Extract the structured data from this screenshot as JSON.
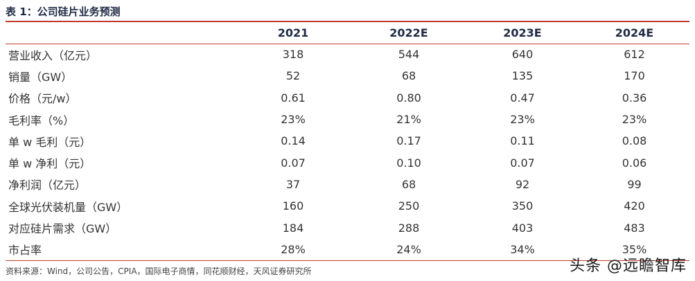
{
  "title": "表 1：公司硅片业务预测",
  "header": {
    "label": "",
    "years": [
      "2021",
      "2022E",
      "2023E",
      "2024E"
    ]
  },
  "rows": [
    {
      "label": "营业收入（亿元）",
      "values": [
        "318",
        "544",
        "640",
        "612"
      ]
    },
    {
      "label": "销量（GW）",
      "values": [
        "52",
        "68",
        "135",
        "170"
      ]
    },
    {
      "label": "价格（元/w）",
      "values": [
        "0.61",
        "0.80",
        "0.47",
        "0.36"
      ]
    },
    {
      "label": "毛利率（%）",
      "values": [
        "23%",
        "21%",
        "23%",
        "23%"
      ]
    },
    {
      "label": "单 w 毛利（元）",
      "values": [
        "0.14",
        "0.17",
        "0.11",
        "0.08"
      ]
    },
    {
      "label": "单 w 净利（元）",
      "values": [
        "0.07",
        "0.10",
        "0.07",
        "0.06"
      ]
    },
    {
      "label": "净利润（亿元）",
      "values": [
        "37",
        "68",
        "92",
        "99"
      ]
    },
    {
      "label": "全球光伏装机量（GW）",
      "values": [
        "160",
        "250",
        "350",
        "420"
      ]
    },
    {
      "label": "对应硅片需求（GW）",
      "values": [
        "184",
        "288",
        "403",
        "483"
      ]
    },
    {
      "label": "市占率",
      "values": [
        "28%",
        "24%",
        "34%",
        "35%"
      ]
    }
  ],
  "source": "资料来源：Wind，公司公告，CPIA，国际电子商情，同花顺财经，天风证券研究所",
  "watermark": "头条 @远瞻智库",
  "colors": {
    "rule": "#c0392b",
    "title": "#1f2a44"
  }
}
